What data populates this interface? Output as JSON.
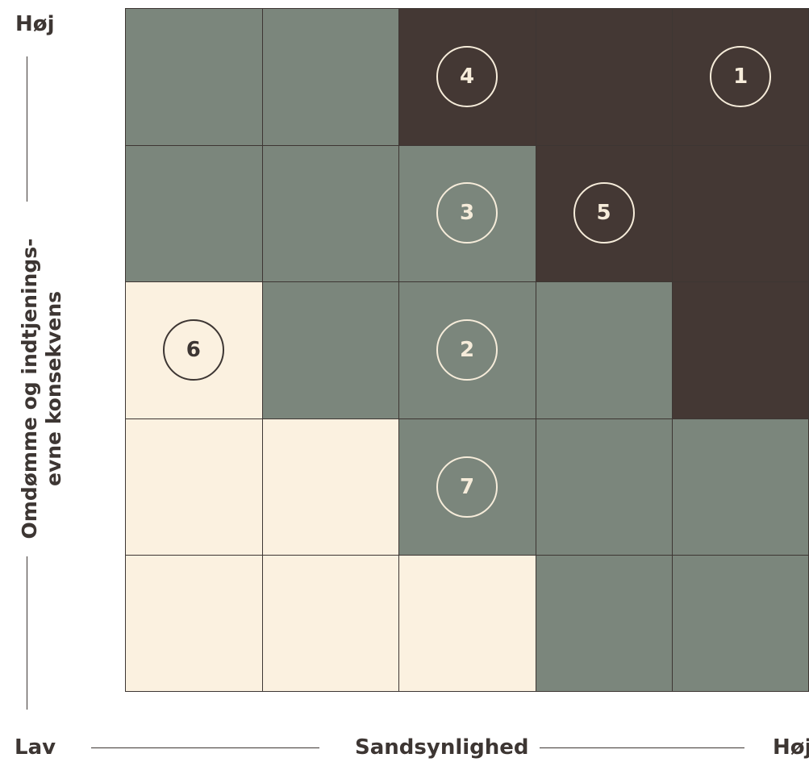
{
  "colors": {
    "dark": "#443834",
    "grey": "#7b867c",
    "cream": "#fbf1e0",
    "line": "#3d3633",
    "badge_light": "#f6ecda",
    "badge_dark": "#3d3633"
  },
  "matrix": {
    "rows": [
      [
        "grey",
        "grey",
        "dark",
        "dark",
        "dark"
      ],
      [
        "grey",
        "grey",
        "grey",
        "dark",
        "dark"
      ],
      [
        "cream",
        "grey",
        "grey",
        "grey",
        "dark"
      ],
      [
        "cream",
        "cream",
        "grey",
        "grey",
        "grey"
      ],
      [
        "cream",
        "cream",
        "cream",
        "grey",
        "grey"
      ]
    ],
    "markers": [
      {
        "label": "1",
        "row": 0,
        "col": 4
      },
      {
        "label": "2",
        "row": 2,
        "col": 2
      },
      {
        "label": "3",
        "row": 1,
        "col": 2
      },
      {
        "label": "4",
        "row": 0,
        "col": 2
      },
      {
        "label": "5",
        "row": 1,
        "col": 3
      },
      {
        "label": "6",
        "row": 2,
        "col": 0
      },
      {
        "label": "7",
        "row": 3,
        "col": 2
      }
    ]
  },
  "y_axis": {
    "top": "Høj",
    "label_line1": "Omdømme og indtjenings-",
    "label_line2": "evne konsekvens"
  },
  "x_axis": {
    "left": "Lav",
    "label": "Sandsynlighed",
    "right": "Høj"
  }
}
